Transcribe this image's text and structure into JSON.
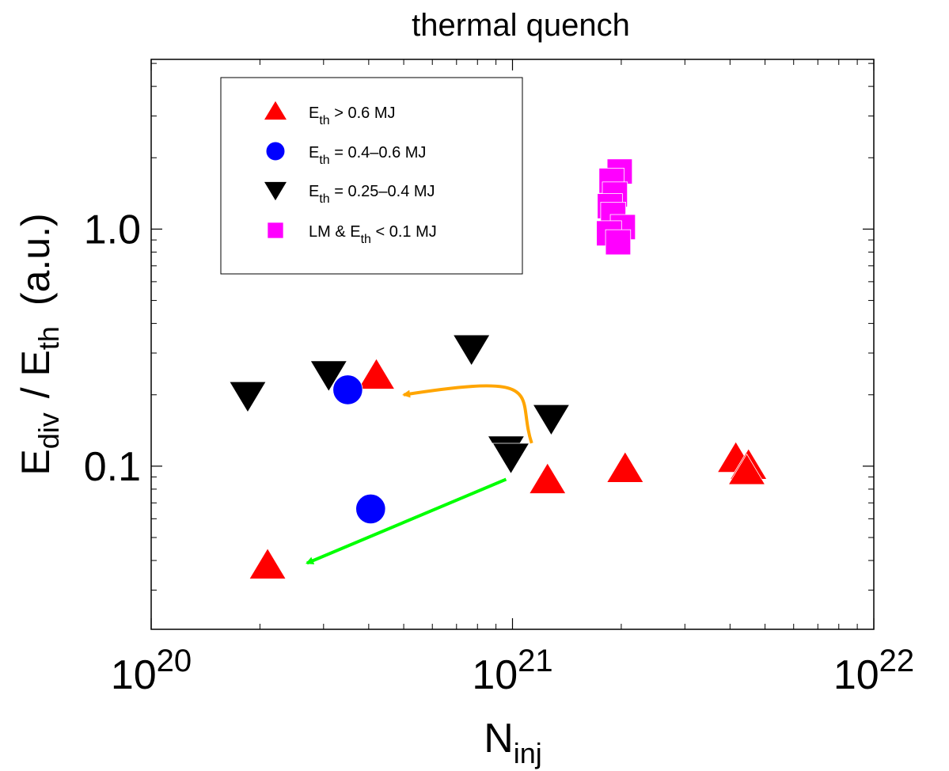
{
  "chart_data": {
    "type": "scatter",
    "title": "thermal quench",
    "xlabel": {
      "main": "N",
      "sub": "inj"
    },
    "ylabel": {
      "main1": "E",
      "sub1": "div",
      "sep": "/ E",
      "sub2": "th",
      "unit": "(a.u.)"
    },
    "x_scale": "log",
    "y_scale": "log",
    "xlim": [
      1e+20,
      1e+22
    ],
    "ylim": [
      0.0205,
      5.2
    ],
    "x_ticks": [
      {
        "value": 1e+20,
        "base": "10",
        "exp": "20"
      },
      {
        "value": 1e+21,
        "base": "10",
        "exp": "21"
      },
      {
        "value": 1e+22,
        "base": "10",
        "exp": "22"
      }
    ],
    "y_ticks": [
      {
        "value": 0.1,
        "label": "0.1"
      },
      {
        "value": 1.0,
        "label": "1.0"
      }
    ],
    "grid": false,
    "legend_position": "top-left",
    "series": [
      {
        "name": "E_th > 0.6 MJ",
        "legend": {
          "pre": "E",
          "sub": "th",
          "post": " > 0.6 MJ"
        },
        "marker": "triangle-up",
        "color": "#ff0000",
        "points": [
          {
            "x": 2.1e+20,
            "y": 0.038
          },
          {
            "x": 4.2e+20,
            "y": 0.24
          },
          {
            "x": 1.25e+21,
            "y": 0.087
          },
          {
            "x": 2.05e+21,
            "y": 0.097
          },
          {
            "x": 4.15e+21,
            "y": 0.107
          },
          {
            "x": 4.5e+21,
            "y": 0.1
          },
          {
            "x": 4.45e+21,
            "y": 0.095
          }
        ]
      },
      {
        "name": "E_th = 0.4–0.6 MJ",
        "legend": {
          "pre": "E",
          "sub": "th",
          "post": " = 0.4–0.6 MJ"
        },
        "marker": "circle",
        "color": "#0000ff",
        "points": [
          {
            "x": 3.5e+20,
            "y": 0.21
          },
          {
            "x": 4.05e+20,
            "y": 0.066
          }
        ]
      },
      {
        "name": "E_th = 0.25–0.4 MJ",
        "legend": {
          "pre": "E",
          "sub": "th",
          "post": " = 0.25–0.4 MJ"
        },
        "marker": "triangle-down",
        "color": "#000000",
        "points": [
          {
            "x": 1.85e+20,
            "y": 0.2
          },
          {
            "x": 3.1e+20,
            "y": 0.245
          },
          {
            "x": 7.7e+20,
            "y": 0.315
          },
          {
            "x": 1.28e+21,
            "y": 0.16
          },
          {
            "x": 9.6e+20,
            "y": 0.118
          },
          {
            "x": 9.9e+20,
            "y": 0.11
          }
        ]
      },
      {
        "name": "LM & E_th < 0.1 MJ",
        "legend": {
          "pre": "LM & E",
          "sub": "th",
          "post": " < 0.1 MJ"
        },
        "marker": "square",
        "color": "#ff00ff",
        "points": [
          {
            "x": 1.98e+21,
            "y": 1.75
          },
          {
            "x": 1.88e+21,
            "y": 1.6
          },
          {
            "x": 1.92e+21,
            "y": 1.4
          },
          {
            "x": 1.86e+21,
            "y": 1.25
          },
          {
            "x": 1.9e+21,
            "y": 1.15
          },
          {
            "x": 2.02e+21,
            "y": 1.02
          },
          {
            "x": 1.85e+21,
            "y": 0.96
          },
          {
            "x": 1.96e+21,
            "y": 0.88
          }
        ]
      }
    ],
    "annotations": [
      {
        "type": "arrow-curved",
        "color": "#ffa500",
        "from": {
          "x": 1.13e+21,
          "y": 0.125
        },
        "ctrl1": {
          "x": 1.02e+21,
          "y": 0.2
        },
        "ctrl2": {
          "x": 1.28e+21,
          "y": 0.25
        },
        "to": {
          "x": 5e+20,
          "y": 0.2
        }
      },
      {
        "type": "arrow",
        "color": "#00ff00",
        "from": {
          "x": 9.6e+20,
          "y": 0.088
        },
        "to": {
          "x": 2.7e+20,
          "y": 0.039
        }
      }
    ]
  }
}
